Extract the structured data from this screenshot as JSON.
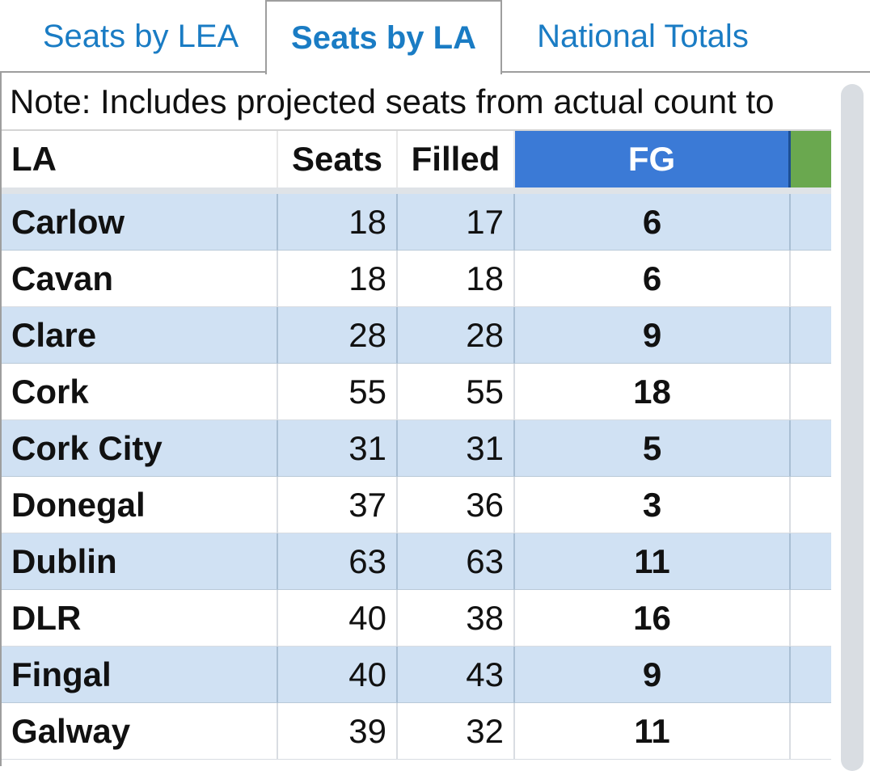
{
  "tabs": [
    {
      "label": "Seats by LEA",
      "active": false
    },
    {
      "label": "Seats by LA",
      "active": true
    },
    {
      "label": "National Totals",
      "active": false
    }
  ],
  "note": "Note: Includes projected seats from actual count to",
  "table": {
    "headers": {
      "la": "LA",
      "seats": "Seats",
      "filled": "Filled",
      "fg": "FG"
    },
    "party_colors": {
      "fg": "#3b7ad6",
      "next": "#6aa84f"
    },
    "rows": [
      {
        "la": "Carlow",
        "seats": "18",
        "filled": "17",
        "fg": "6"
      },
      {
        "la": "Cavan",
        "seats": "18",
        "filled": "18",
        "fg": "6"
      },
      {
        "la": "Clare",
        "seats": "28",
        "filled": "28",
        "fg": "9"
      },
      {
        "la": "Cork",
        "seats": "55",
        "filled": "55",
        "fg": "18"
      },
      {
        "la": "Cork City",
        "seats": "31",
        "filled": "31",
        "fg": "5"
      },
      {
        "la": "Donegal",
        "seats": "37",
        "filled": "36",
        "fg": "3"
      },
      {
        "la": "Dublin",
        "seats": "63",
        "filled": "63",
        "fg": "11"
      },
      {
        "la": "DLR",
        "seats": "40",
        "filled": "38",
        "fg": "16"
      },
      {
        "la": "Fingal",
        "seats": "40",
        "filled": "43",
        "fg": "9"
      },
      {
        "la": "Galway",
        "seats": "39",
        "filled": "32",
        "fg": "11"
      }
    ]
  }
}
